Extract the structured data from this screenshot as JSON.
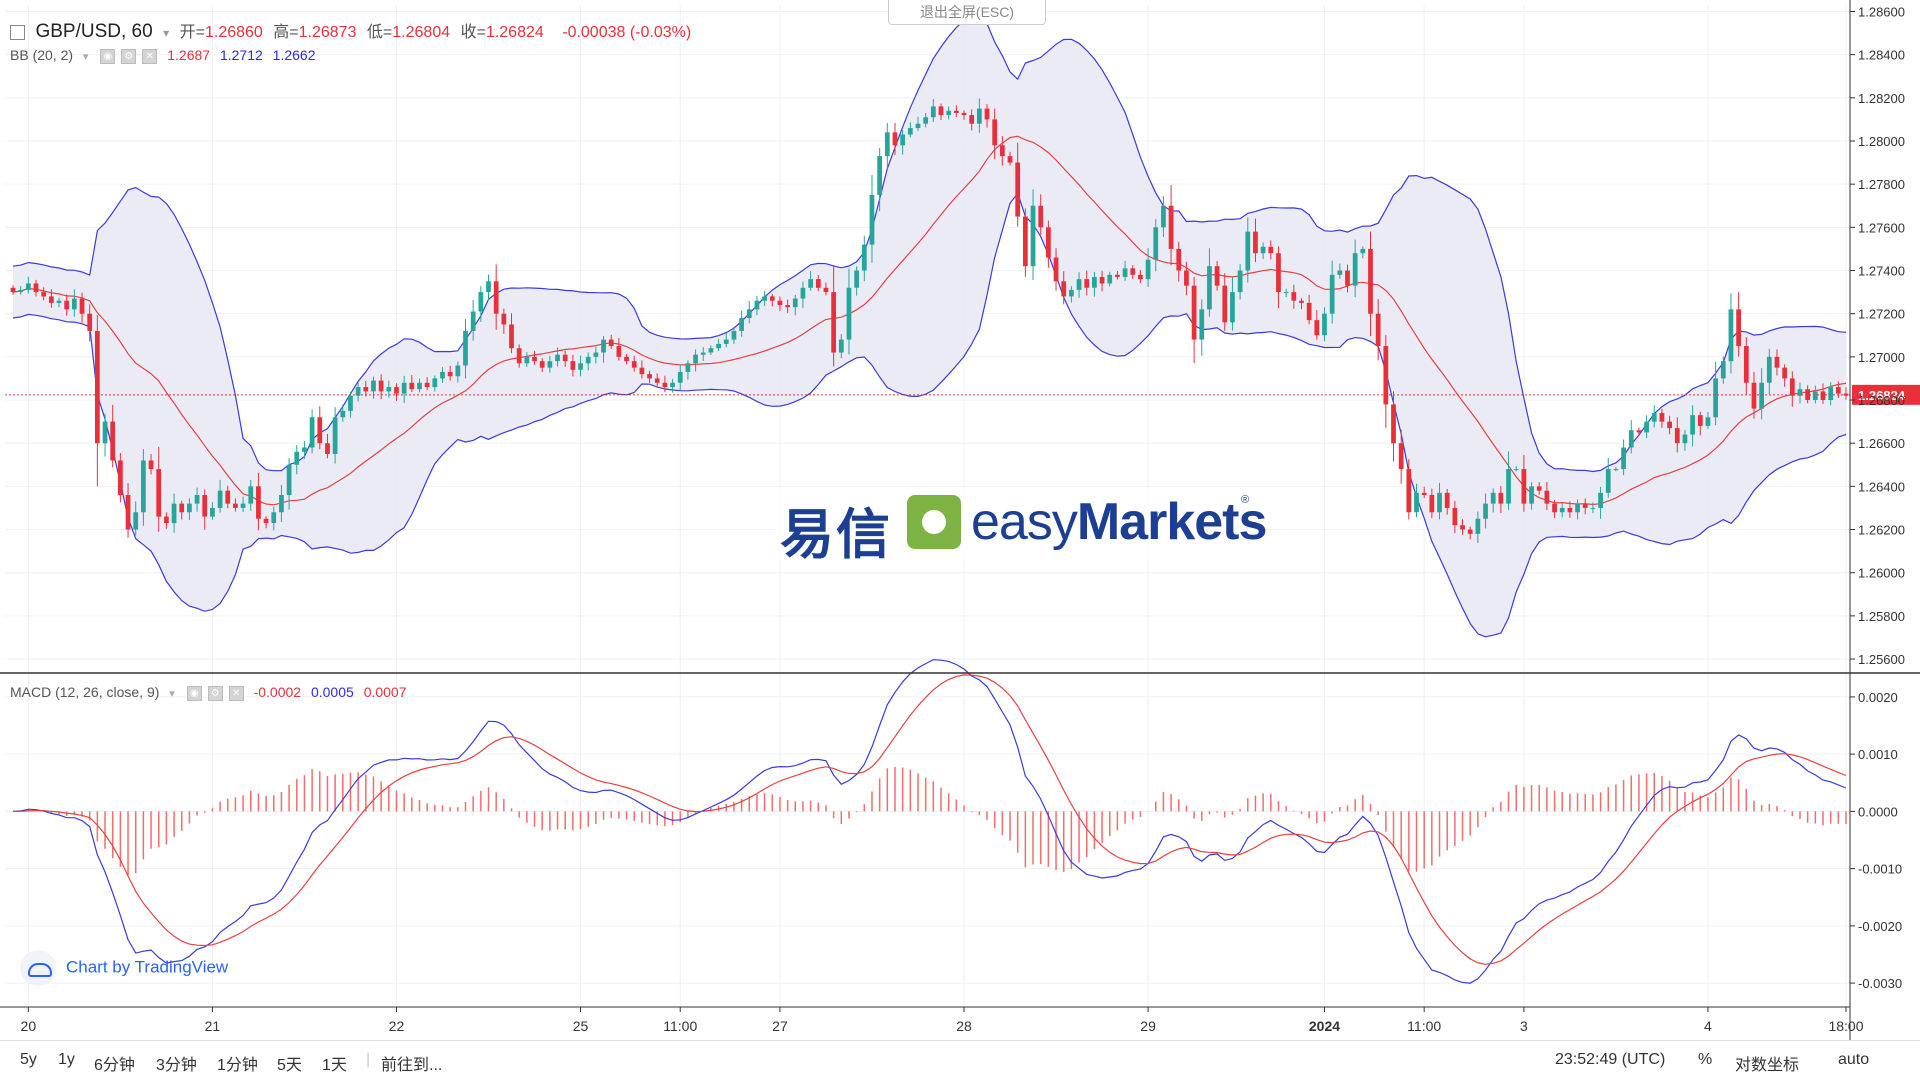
{
  "header": {
    "symbol": "GBP/USD, 60",
    "open_label": "开=",
    "open": "1.26860",
    "high_label": "高=",
    "high": "1.26873",
    "low_label": "低=",
    "low": "1.26804",
    "close_label": "收=",
    "close": "1.26824",
    "change": "-0.00038 (-0.03%)"
  },
  "bb_legend": {
    "name": "BB (20, 2)",
    "v1": "1.2687",
    "v2": "1.2712",
    "v3": "1.2662"
  },
  "macd_legend": {
    "name": "MACD (12, 26, close, 9)",
    "v1": "-0.0002",
    "v2": "0.0005",
    "v3": "0.0007"
  },
  "exit_fullscreen": "退出全屏(ESC)",
  "watermark": {
    "cn": "易信",
    "en_light": "easy",
    "en_bold": "Markets",
    "reg": "®"
  },
  "branding": {
    "text": "Chart by TradingView"
  },
  "bottom_toolbar": {
    "ranges": [
      "5y",
      "1y",
      "6分钟",
      "3分钟",
      "1分钟",
      "5天",
      "1天"
    ],
    "goto": "前往到...",
    "clock": "23:52:49 (UTC)",
    "percent": "%",
    "log": "对数坐标",
    "auto": "auto"
  },
  "colors": {
    "up": "#26a69a",
    "down": "#e8303a",
    "bb_band": "#3a3ae0",
    "bb_fill": "#e8e8f5",
    "bb_basis": "#e84040",
    "macd_line": "#3a3ae0",
    "signal_line": "#e84040",
    "hist": "#f26d6d"
  },
  "chart_data": [
    {
      "type": "candlestick",
      "title": "GBP/USD, 60",
      "y_ticks": [
        "1.28600",
        "1.28400",
        "1.28200",
        "1.28000",
        "1.27800",
        "1.27600",
        "1.27400",
        "1.27200",
        "1.27000",
        "1.26800",
        "1.26600",
        "1.26400",
        "1.26200",
        "1.26000",
        "1.25800",
        "1.25600"
      ],
      "ylim": [
        1.2554,
        1.2863
      ],
      "x_ticks": [
        {
          "label": "20",
          "i": 2
        },
        {
          "label": "21",
          "i": 26
        },
        {
          "label": "22",
          "i": 50
        },
        {
          "label": "25",
          "i": 74
        },
        {
          "label": "11:00",
          "i": 87
        },
        {
          "label": "27",
          "i": 100
        },
        {
          "label": "28",
          "i": 124
        },
        {
          "label": "29",
          "i": 148
        },
        {
          "label": "2024",
          "i": 171
        },
        {
          "label": "11:00",
          "i": 184
        },
        {
          "label": "3",
          "i": 197
        },
        {
          "label": "4",
          "i": 221
        },
        {
          "label": "18:00",
          "i": 239
        }
      ],
      "last_price": "1.26824",
      "close_series": [
        1.273,
        1.2731,
        1.2734,
        1.273,
        1.2728,
        1.2725,
        1.2726,
        1.2722,
        1.2727,
        1.272,
        1.2712,
        1.266,
        1.267,
        1.2652,
        1.2636,
        1.262,
        1.2628,
        1.2652,
        1.2648,
        1.2626,
        1.2623,
        1.2632,
        1.2628,
        1.2632,
        1.2636,
        1.2626,
        1.263,
        1.2638,
        1.2632,
        1.263,
        1.2632,
        1.264,
        1.2625,
        1.2623,
        1.2628,
        1.2636,
        1.265,
        1.2656,
        1.2658,
        1.2672,
        1.266,
        1.2655,
        1.2672,
        1.2675,
        1.2682,
        1.2686,
        1.2684,
        1.2689,
        1.2684,
        1.2686,
        1.2683,
        1.2688,
        1.2685,
        1.2688,
        1.2686,
        1.269,
        1.2693,
        1.2691,
        1.2696,
        1.2712,
        1.2721,
        1.273,
        1.2735,
        1.272,
        1.2715,
        1.2704,
        1.2697,
        1.27,
        1.2698,
        1.2695,
        1.2698,
        1.2701,
        1.2698,
        1.2694,
        1.2697,
        1.27,
        1.2702,
        1.2708,
        1.2705,
        1.27,
        1.2698,
        1.2695,
        1.2692,
        1.269,
        1.2688,
        1.2686,
        1.2688,
        1.2693,
        1.2697,
        1.2701,
        1.2702,
        1.2704,
        1.2706,
        1.2708,
        1.2712,
        1.2718,
        1.2722,
        1.2726,
        1.2728,
        1.2726,
        1.2724,
        1.2723,
        1.2727,
        1.2732,
        1.2736,
        1.2732,
        1.273,
        1.2702,
        1.2708,
        1.2732,
        1.274,
        1.2752,
        1.2775,
        1.2793,
        1.2804,
        1.2798,
        1.2803,
        1.2806,
        1.2808,
        1.2811,
        1.2816,
        1.2812,
        1.2814,
        1.2813,
        1.2812,
        1.2808,
        1.2815,
        1.281,
        1.2798,
        1.2793,
        1.279,
        1.2765,
        1.2742,
        1.277,
        1.276,
        1.2746,
        1.2735,
        1.2728,
        1.2731,
        1.2736,
        1.2732,
        1.2737,
        1.2734,
        1.2738,
        1.2737,
        1.2741,
        1.2738,
        1.2736,
        1.2745,
        1.276,
        1.277,
        1.275,
        1.274,
        1.2733,
        1.2708,
        1.2722,
        1.2742,
        1.2733,
        1.2716,
        1.273,
        1.274,
        1.2758,
        1.2748,
        1.2751,
        1.2748,
        1.273,
        1.273,
        1.2726,
        1.2725,
        1.2717,
        1.271,
        1.272,
        1.2738,
        1.274,
        1.2733,
        1.2748,
        1.275,
        1.272,
        1.2705,
        1.2678,
        1.266,
        1.2648,
        1.2628,
        1.2637,
        1.2636,
        1.2628,
        1.2637,
        1.263,
        1.2622,
        1.262,
        1.2618,
        1.2625,
        1.2632,
        1.2637,
        1.2632,
        1.2648,
        1.2648,
        1.2632,
        1.264,
        1.2638,
        1.2632,
        1.2628,
        1.263,
        1.2628,
        1.2632,
        1.263,
        1.263,
        1.2637,
        1.2648,
        1.2648,
        1.2658,
        1.2666,
        1.2665,
        1.267,
        1.2674,
        1.267,
        1.2667,
        1.266,
        1.2664,
        1.2673,
        1.2668,
        1.2672,
        1.269,
        1.2698,
        1.2722,
        1.2705,
        1.2688,
        1.2676,
        1.2688,
        1.27,
        1.2695,
        1.269,
        1.2682,
        1.2685,
        1.268,
        1.2684,
        1.268,
        1.2686,
        1.2683,
        1.2682
      ]
    },
    {
      "type": "line",
      "title": "MACD (12, 26, close, 9)",
      "y_ticks": [
        "0.0020",
        "0.0010",
        "0.0000",
        "-0.0010",
        "-0.0020",
        "-0.0030"
      ],
      "ylim": [
        -0.0034,
        0.0024
      ]
    }
  ]
}
